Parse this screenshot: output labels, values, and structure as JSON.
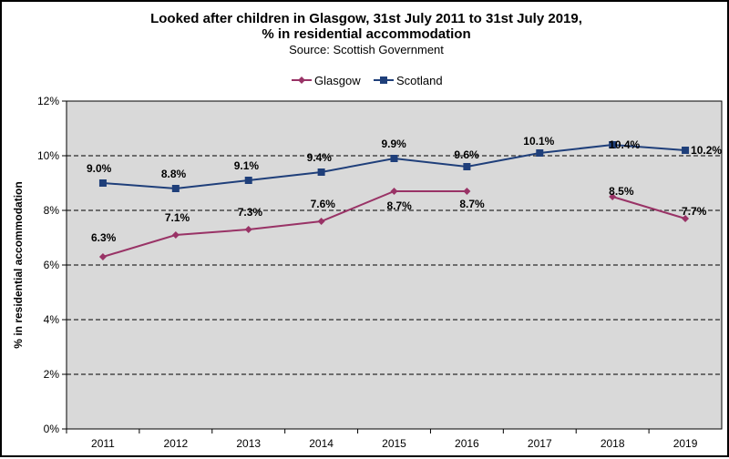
{
  "chart_data": {
    "type": "line",
    "title": "Looked after children in Glasgow, 31st July 2011 to 31st July 2019,",
    "title_line2": "% in residential accommodation",
    "subtitle": "Source: Scottish Government",
    "ylabel": "% in residential accommodation",
    "xlabel": "",
    "ylim": [
      0,
      12
    ],
    "yticks": [
      "0%",
      "2%",
      "4%",
      "6%",
      "8%",
      "10%",
      "12%"
    ],
    "grid": "dashed horizontal",
    "legend": "top-center",
    "categories": [
      "2011",
      "2012",
      "2013",
      "2014",
      "2015",
      "2016",
      "2017",
      "2018",
      "2019"
    ],
    "series": [
      {
        "name": "Glasgow",
        "color": "#993366",
        "marker": "diamond",
        "values": [
          6.3,
          7.1,
          7.3,
          7.6,
          8.7,
          8.7,
          null,
          8.5,
          7.7
        ],
        "labels": [
          "6.3%",
          "7.1%",
          "7.3%",
          "7.6%",
          "8.7%",
          "8.7%",
          null,
          "8.5%",
          "7.7%"
        ]
      },
      {
        "name": "Scotland",
        "color": "#1F3F7A",
        "marker": "square",
        "values": [
          9.0,
          8.8,
          9.1,
          9.4,
          9.9,
          9.6,
          10.1,
          10.4,
          10.2
        ],
        "labels": [
          "9.0%",
          "8.8%",
          "9.1%",
          "9.4%",
          "9.9%",
          "9.6%",
          "10.1%",
          "10.4%",
          "10.2%"
        ]
      }
    ],
    "plot_background": "#D9D9D9"
  }
}
